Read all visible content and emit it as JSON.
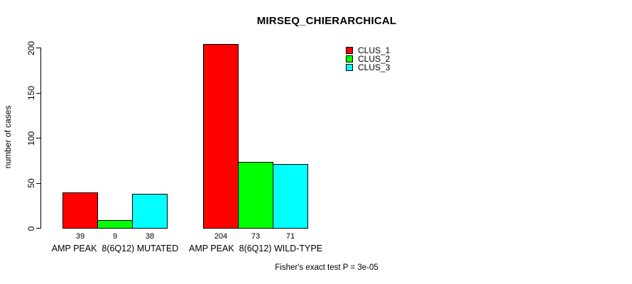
{
  "chart_data": {
    "type": "bar",
    "title": "MIRSEQ_CHIERARCHICAL",
    "ylabel": "number of cases",
    "xlabel": "",
    "ylim": [
      0,
      200
    ],
    "yticks": [
      0,
      50,
      100,
      150,
      200
    ],
    "grid": false,
    "legend_position": "top-right",
    "background_color": "#ffffff",
    "bar_border_color": "#000000",
    "categories": [
      "AMP PEAK  8(6Q12) MUTATED",
      "AMP PEAK  8(6Q12) WILD-TYPE"
    ],
    "series": [
      {
        "name": "CLUS_1",
        "color": "#ff0000",
        "values": [
          39,
          204
        ]
      },
      {
        "name": "CLUS_2",
        "color": "#00ff00",
        "values": [
          9,
          73
        ]
      },
      {
        "name": "CLUS_3",
        "color": "#00ffff",
        "values": [
          38,
          71
        ]
      }
    ],
    "bar_value_labels": [
      [
        39,
        9,
        38
      ],
      [
        204,
        73,
        71
      ]
    ],
    "annotation": "Fisher's exact test P = 3e-05"
  }
}
